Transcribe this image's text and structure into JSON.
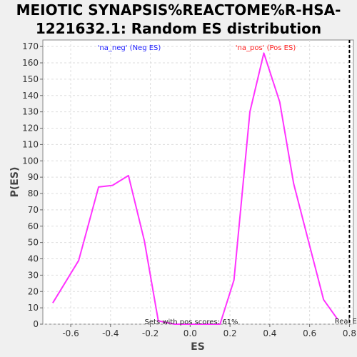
{
  "chart_data": {
    "type": "line",
    "title_line1": "MEIOTIC SYNAPSIS%REACTOME%R-HSA-",
    "title_line2": "1221632.1: Random ES distribution",
    "xlabel": "ES",
    "ylabel": "P(ES)",
    "xlim": [
      -0.74,
      0.82
    ],
    "ylim": [
      0,
      174
    ],
    "x_ticks": [
      -0.6,
      -0.4,
      -0.2,
      0.0,
      0.2,
      0.4,
      0.6,
      0.8
    ],
    "x_tick_labels": [
      "-0.6",
      "-0.4",
      "-0.2",
      "0.0",
      "0.2",
      "0.4",
      "0.6",
      "0.8"
    ],
    "y_ticks": [
      0,
      10,
      20,
      30,
      40,
      50,
      60,
      70,
      80,
      90,
      100,
      110,
      120,
      130,
      140,
      150,
      160,
      170
    ],
    "grid": true,
    "series": [
      {
        "color": "#ff33ff",
        "x": [
          -0.69,
          -0.62,
          -0.56,
          -0.46,
          -0.39,
          -0.31,
          -0.23,
          -0.16,
          -0.08,
          0.0,
          0.07,
          0.15,
          0.22,
          0.3,
          0.37,
          0.45,
          0.52,
          0.6,
          0.67,
          0.74
        ],
        "y": [
          13,
          27,
          39,
          84,
          85,
          91,
          51,
          2,
          0,
          0,
          0,
          0,
          27,
          130,
          166,
          136,
          86,
          48,
          15,
          3
        ]
      }
    ],
    "legend_neg": "'na_neg' (Neg ES)",
    "legend_pos": "'na_pos' (Pos ES)",
    "annotation": "Sets with pos scores: 61%",
    "real_es_label": "Real ES",
    "real_es_x": 0.8
  }
}
